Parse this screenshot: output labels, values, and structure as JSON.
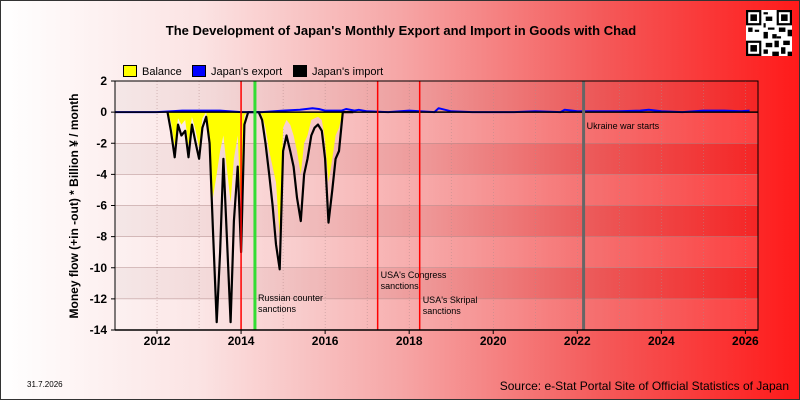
{
  "title": "The Development of Japan's Monthly Export and Import in Goods with Chad",
  "date_label": "31.7.2026",
  "source": "Source: e-Stat Portal Site of Official Statistics of Japan",
  "chart_data": {
    "type": "area",
    "ylabel": "Money flow (+in -out) * Billion ¥ / month",
    "ylim": [
      -14,
      2
    ],
    "yticks": [
      "2",
      "0",
      "-2",
      "-4",
      "-6",
      "-8",
      "-10",
      "-12",
      "-14"
    ],
    "xlim": [
      2011,
      2026.3
    ],
    "xticks": [
      "2012",
      "2014",
      "2016",
      "2018",
      "2020",
      "2022",
      "2024",
      "2026"
    ],
    "grid": true,
    "legend_position": "top-left",
    "colors": {
      "balance": "#ffff00",
      "export": "#0000ff",
      "import": "#000000",
      "event_red": "#ff0000",
      "event_green": "#33dd33",
      "event_gray": "#666666"
    },
    "series": [
      {
        "name": "Balance",
        "key": "balance",
        "x": [
          2012.25,
          2012.33,
          2012.42,
          2012.5,
          2012.58,
          2012.67,
          2012.75,
          2012.83,
          2012.92,
          2013.0,
          2013.08,
          2013.17,
          2013.25,
          2013.33,
          2013.42,
          2013.5,
          2013.58,
          2013.67,
          2013.75,
          2013.83,
          2013.92,
          2014.0,
          2014.08,
          2014.17,
          2014.25,
          2014.33,
          2014.42,
          2014.5,
          2014.58,
          2014.67,
          2014.75,
          2014.83,
          2014.92,
          2015.0,
          2015.08,
          2015.17,
          2015.25,
          2015.33,
          2015.42,
          2015.5,
          2015.58,
          2015.67,
          2015.75,
          2015.83,
          2015.92,
          2016.0,
          2016.08,
          2016.17,
          2016.25,
          2016.33,
          2016.42,
          2016.5,
          2016.58,
          2016.67
        ],
        "values": [
          0,
          -0.6,
          -2.2,
          -0.4,
          -0.8,
          -0.5,
          -2.2,
          -0.3,
          -1.2,
          -2.3,
          -0.4,
          0,
          -1.5,
          -5.5,
          -4.0,
          -2.5,
          -1.5,
          -3.8,
          -5.8,
          -3.0,
          -1.5,
          -6.5,
          -0.2,
          0,
          0,
          0,
          0,
          -0.2,
          -1.0,
          -2.5,
          -3.5,
          -4.5,
          -8.0,
          -1.0,
          -0.5,
          -0.8,
          -1.5,
          -2.5,
          -4.0,
          -2.0,
          -1.5,
          -0.5,
          -0.4,
          -0.3,
          -0.5,
          -1.8,
          -4.5,
          -3.0,
          -1.5,
          -1.0,
          0,
          0,
          0,
          0
        ]
      },
      {
        "name": "Japan's export",
        "key": "export",
        "x": [
          2011.0,
          2012.0,
          2012.6,
          2013.0,
          2013.5,
          2014.0,
          2014.5,
          2015.0,
          2015.4,
          2015.55,
          2015.7,
          2015.85,
          2016.0,
          2016.4,
          2016.5,
          2016.7,
          2016.8,
          2017.0,
          2017.5,
          2018.0,
          2018.6,
          2018.7,
          2019.0,
          2019.5,
          2020.0,
          2020.5,
          2021.0,
          2021.6,
          2021.7,
          2022.0,
          2022.5,
          2023.0,
          2023.5,
          2023.7,
          2024.0,
          2024.5,
          2025.0,
          2025.5,
          2025.9,
          2026.1
        ],
        "values": [
          0,
          0,
          0.1,
          0.1,
          0.1,
          0,
          0,
          0.1,
          0.15,
          0.2,
          0.25,
          0.2,
          0.1,
          0.1,
          0.2,
          0.1,
          0.15,
          0.05,
          0,
          0.1,
          0,
          0.25,
          0.05,
          0,
          0,
          0,
          0.05,
          0,
          0.15,
          0.05,
          0.05,
          0.05,
          0.1,
          0.15,
          0.05,
          0,
          0.1,
          0.1,
          0.05,
          0.1
        ]
      },
      {
        "name": "Japan's import",
        "key": "import",
        "x": [
          2012.25,
          2012.33,
          2012.42,
          2012.5,
          2012.58,
          2012.67,
          2012.75,
          2012.83,
          2012.92,
          2013.0,
          2013.08,
          2013.17,
          2013.25,
          2013.33,
          2013.42,
          2013.5,
          2013.58,
          2013.67,
          2013.75,
          2013.83,
          2013.92,
          2014.0,
          2014.08,
          2014.17,
          2014.25,
          2014.33,
          2014.42,
          2014.5,
          2014.58,
          2014.67,
          2014.75,
          2014.83,
          2014.92,
          2015.0,
          2015.08,
          2015.17,
          2015.25,
          2015.33,
          2015.42,
          2015.5,
          2015.58,
          2015.67,
          2015.75,
          2015.83,
          2015.92,
          2016.0,
          2016.08,
          2016.17,
          2016.25,
          2016.33,
          2016.42,
          2016.5,
          2016.58,
          2016.67
        ],
        "values": [
          0,
          -1.2,
          -2.9,
          -0.8,
          -1.5,
          -1.2,
          -2.9,
          -0.8,
          -2.0,
          -3.0,
          -1.0,
          -0.3,
          -2.0,
          -7.5,
          -13.5,
          -9.0,
          -3.0,
          -8.5,
          -13.5,
          -7.0,
          -3.5,
          -9.0,
          -0.8,
          0,
          0,
          0,
          0,
          -0.5,
          -2.0,
          -4.0,
          -6.0,
          -8.5,
          -10.1,
          -2.5,
          -1.5,
          -2.5,
          -3.5,
          -5.5,
          -7.0,
          -4.0,
          -3.0,
          -1.5,
          -1.0,
          -0.8,
          -1.2,
          -3.0,
          -7.1,
          -5.0,
          -3.0,
          -2.5,
          0,
          0,
          0,
          0
        ]
      }
    ],
    "events": [
      {
        "x": 2014.0,
        "color": "event_red",
        "label": []
      },
      {
        "x": 2014.33,
        "color": "event_green",
        "label": [
          "Russian counter",
          "sanctions"
        ]
      },
      {
        "x": 2017.25,
        "color": "event_red",
        "label": [
          "USA's Congress",
          "sanctions"
        ]
      },
      {
        "x": 2018.25,
        "color": "event_red",
        "label": [
          "USA's Skripal",
          "sanctions"
        ]
      },
      {
        "x": 2022.15,
        "color": "event_gray",
        "label": [
          "Ukraine war starts"
        ]
      }
    ]
  }
}
